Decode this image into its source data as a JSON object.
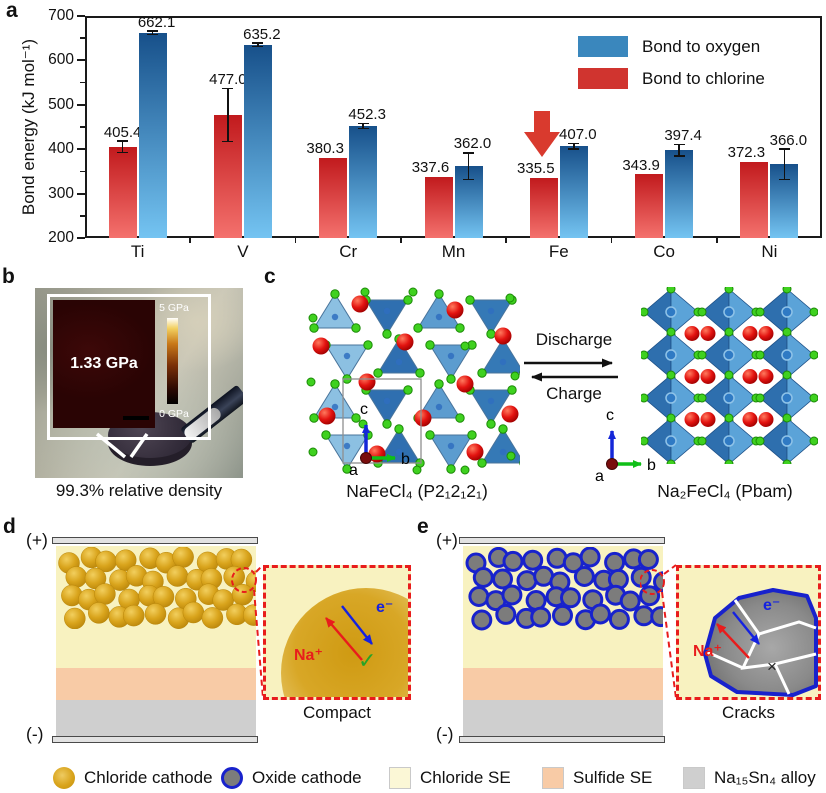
{
  "panel_labels": {
    "a": "a",
    "b": "b",
    "c": "c",
    "d": "d",
    "e": "e"
  },
  "chart_data": {
    "type": "bar",
    "ylabel": "Bond energy (kJ mol⁻¹)",
    "ylim": [
      200,
      700
    ],
    "yticks": [
      200,
      300,
      400,
      500,
      600,
      700
    ],
    "minor_tick_step": 50,
    "categories": [
      "Ti",
      "V",
      "Cr",
      "Mn",
      "Fe",
      "Co",
      "Ni"
    ],
    "series": [
      {
        "name": "Bond to chlorine",
        "values": [
          405.4,
          477.0,
          380.3,
          337.6,
          335.5,
          343.9,
          372.3
        ],
        "errors": [
          13,
          60,
          0,
          0,
          0,
          0,
          0
        ]
      },
      {
        "name": "Bond to oxygen",
        "values": [
          662.1,
          635.2,
          452.3,
          362.0,
          407.0,
          397.4,
          366.0
        ],
        "errors": [
          4,
          4,
          6,
          30,
          6,
          13,
          34
        ]
      }
    ],
    "legend": [
      {
        "label": "Bond to oxygen"
      },
      {
        "label": "Bond to chlorine"
      }
    ],
    "annotation": {
      "type": "down-arrow",
      "category": "Fe"
    }
  },
  "panel_b": {
    "inset_value": "1.33 GPa",
    "scale_top": "5 GPa",
    "scale_bottom": "0 GPa",
    "caption": "99.3% relative density"
  },
  "panel_c": {
    "discharge": "Discharge",
    "charge": "Charge",
    "left_formula": "NaFeCl₄ (P2₁2₁2₁)",
    "right_formula": "Na₂FeCl₄ (Pbam)",
    "axis": {
      "a": "a",
      "b": "b",
      "c": "c"
    }
  },
  "panel_d": {
    "plus": "(+)",
    "minus": "(-)",
    "na_ion": "Na⁺",
    "electron": "e⁻",
    "check": "✓",
    "caption": "Compact"
  },
  "panel_e": {
    "plus": "(+)",
    "minus": "(-)",
    "na_ion": "Na⁺",
    "electron": "e⁻",
    "cross": "×",
    "caption": "Cracks"
  },
  "legend_bar": {
    "items": [
      {
        "label": "Chloride cathode",
        "swatch": "chloride-cathode-circle"
      },
      {
        "label": "Oxide cathode",
        "swatch": "oxide-cathode-circle"
      },
      {
        "label": "Chloride SE",
        "swatch": "chloride-se-square"
      },
      {
        "label": "Sulfide SE",
        "swatch": "sulfide-se-square"
      },
      {
        "label": "Na₁₅Sn₄ alloy",
        "swatch": "alloy-square"
      }
    ]
  },
  "colors": {
    "axis_black": "#1a1a1a",
    "bar_red_top": "#c11a1d",
    "bar_red_bottom": "#f4716d",
    "bar_blue_top": "#17508a",
    "bar_blue_bottom": "#74c4f2",
    "legend_blue": "#3a87bd",
    "legend_red": "#d0342f",
    "annotation_red": "#d93a2e",
    "chloride_cathode_gold": "#d9a41c",
    "chloride_se_yellow": "#f8f2c0",
    "sulfide_se_peach": "#f8cba6",
    "alloy_gray": "#cfcfcf",
    "electrode_gray": "#e2e2e2",
    "oxide_gray": "#7c7c7c",
    "oxide_border_blue": "#1822cc",
    "na_red": "#e81c1c",
    "electron_blue": "#1522e0",
    "check_green": "#27a327",
    "callout_red": "#e81c1c"
  }
}
